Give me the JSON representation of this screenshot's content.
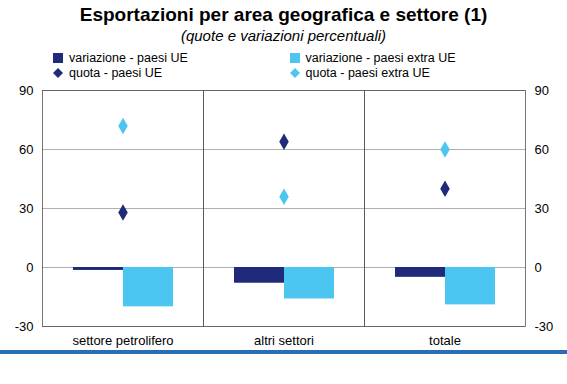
{
  "chart_data": {
    "type": "bar",
    "title": "Esportazioni per area geografica e settore (1)",
    "subtitle": "(quote e variazioni percentuali)",
    "categories": [
      "settore petrolifero",
      "altri settori",
      "totale"
    ],
    "series": [
      {
        "name": "variazione  - paesi UE",
        "type": "bar",
        "color": "#1f2a7a",
        "values": [
          -1.5,
          -8,
          -5
        ]
      },
      {
        "name": "variazione - paesi extra UE",
        "type": "bar",
        "color": "#4cc6f0",
        "values": [
          -20,
          -16,
          -19
        ]
      },
      {
        "name": "quota - paesi UE",
        "type": "scatter",
        "marker": "diamond",
        "color": "#1f2a7a",
        "values": [
          28,
          64,
          40
        ]
      },
      {
        "name": "quota - paesi extra UE",
        "type": "scatter",
        "marker": "diamond",
        "color": "#4cc6f0",
        "values": [
          72,
          36,
          60
        ]
      }
    ],
    "ylim": [
      -30,
      90
    ],
    "yticks": [
      -30,
      0,
      30,
      60,
      90
    ],
    "grid": true,
    "legend": "top"
  }
}
